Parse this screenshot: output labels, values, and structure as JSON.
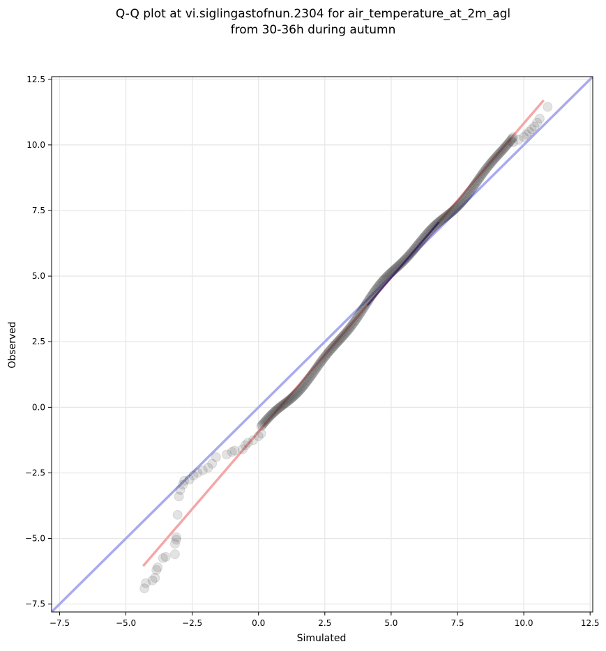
{
  "chart_data": {
    "type": "scatter",
    "title_line1": "Q-Q plot at vi.siglingastofnun.2304 for air_temperature_at_2m_agl",
    "title_line2": "from 30-36h during autumn",
    "xlabel": "Simulated",
    "ylabel": "Observed",
    "xlim": [
      -7.8,
      12.6
    ],
    "ylim": [
      -7.8,
      12.6
    ],
    "x_ticks": [
      -7.5,
      -5.0,
      -2.5,
      0.0,
      2.5,
      5.0,
      7.5,
      10.0,
      12.5
    ],
    "y_ticks": [
      -7.5,
      -5.0,
      -2.5,
      0.0,
      2.5,
      5.0,
      7.5,
      10.0,
      12.5
    ],
    "x_tick_labels": [
      "−7.5",
      "−5.0",
      "−2.5",
      "0.0",
      "2.5",
      "5.0",
      "7.5",
      "10.0",
      "12.5"
    ],
    "y_tick_labels": [
      "−7.5",
      "−5.0",
      "−2.5",
      "0.0",
      "2.5",
      "5.0",
      "7.5",
      "10.0",
      "12.5"
    ],
    "grid": true,
    "identity_line": {
      "color": "#a9aaee",
      "from": [
        -7.8,
        -7.8
      ],
      "to": [
        12.6,
        12.6
      ]
    },
    "fit_line": {
      "color": "#f4a7a7",
      "from": [
        -4.35,
        -6.05
      ],
      "to": [
        10.75,
        11.7
      ]
    },
    "dense_band_color": "#000080",
    "points_tail_low": [
      [
        -4.3,
        -6.9
      ],
      [
        -4.25,
        -6.7
      ],
      [
        -4.0,
        -6.6
      ],
      [
        -3.9,
        -6.5
      ],
      [
        -3.85,
        -6.2
      ],
      [
        -3.8,
        -6.1
      ],
      [
        -3.6,
        -5.75
      ],
      [
        -3.5,
        -5.7
      ],
      [
        -3.15,
        -5.6
      ],
      [
        -3.15,
        -5.2
      ],
      [
        -3.1,
        -5.05
      ],
      [
        -3.1,
        -4.95
      ],
      [
        -3.05,
        -4.1
      ],
      [
        -3.0,
        -3.4
      ],
      [
        -2.95,
        -3.15
      ],
      [
        -2.85,
        -2.95
      ],
      [
        -2.8,
        -2.8
      ],
      [
        -2.6,
        -2.75
      ],
      [
        -2.45,
        -2.6
      ],
      [
        -2.3,
        -2.5
      ],
      [
        -2.1,
        -2.4
      ],
      [
        -1.9,
        -2.3
      ],
      [
        -1.75,
        -2.15
      ],
      [
        -1.6,
        -1.9
      ],
      [
        -1.2,
        -1.8
      ],
      [
        -1.0,
        -1.7
      ],
      [
        -0.9,
        -1.65
      ],
      [
        -0.6,
        -1.6
      ],
      [
        -0.5,
        -1.45
      ],
      [
        -0.4,
        -1.35
      ],
      [
        -0.2,
        -1.25
      ],
      [
        0.0,
        -1.1
      ],
      [
        0.1,
        -1.0
      ]
    ],
    "points_tail_high": [
      [
        9.6,
        10.1
      ],
      [
        9.8,
        10.2
      ],
      [
        10.0,
        10.3
      ],
      [
        10.1,
        10.4
      ],
      [
        10.2,
        10.5
      ],
      [
        10.3,
        10.6
      ],
      [
        10.4,
        10.7
      ],
      [
        10.5,
        10.85
      ],
      [
        10.6,
        11.0
      ],
      [
        10.9,
        11.45
      ]
    ],
    "body_x_range": [
      0.1,
      9.6
    ],
    "body_points": 260
  }
}
